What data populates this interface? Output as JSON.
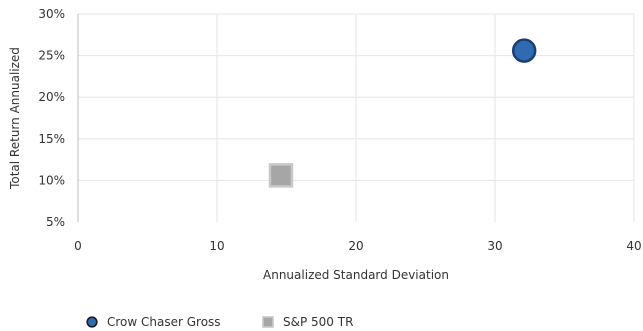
{
  "chart_data": {
    "type": "scatter",
    "xlabel": "Annualized Standard Deviation",
    "ylabel": "Total Return Annualized",
    "xlim": [
      0,
      40
    ],
    "ylim": [
      5,
      30
    ],
    "x_ticks": [
      0,
      10,
      20,
      30,
      40
    ],
    "y_ticks": [
      5,
      10,
      15,
      20,
      25,
      30
    ],
    "y_tick_format": "percent",
    "grid": "vertical and horizontal",
    "legend_position": "bottom-left",
    "series": [
      {
        "name": "Crow Chaser Gross",
        "marker": "circle",
        "color": "#2e6bb0",
        "edge_color": "#1c3f73",
        "points": [
          {
            "x": 32.1,
            "y": 25.6
          }
        ]
      },
      {
        "name": "S&P 500 TR",
        "marker": "square",
        "color": "#a6a6a6",
        "edge_color": "#c8c8c8",
        "points": [
          {
            "x": 14.6,
            "y": 10.6
          }
        ]
      }
    ]
  }
}
